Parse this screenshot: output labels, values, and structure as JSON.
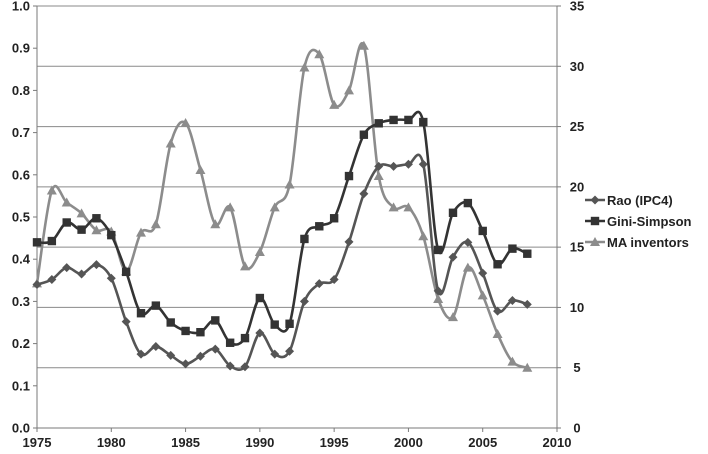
{
  "chart_data": {
    "type": "line",
    "x": [
      1975,
      1976,
      1977,
      1978,
      1979,
      1980,
      1981,
      1982,
      1983,
      1984,
      1985,
      1986,
      1987,
      1988,
      1989,
      1990,
      1991,
      1992,
      1993,
      1994,
      1995,
      1996,
      1997,
      1998,
      1999,
      2000,
      2001,
      2002,
      2003,
      2004,
      2005,
      2006,
      2007,
      2008
    ],
    "xlim": [
      1975,
      2010
    ],
    "xticks": [
      1975,
      1980,
      1985,
      1990,
      1995,
      2000,
      2005,
      2010
    ],
    "ylim_left": [
      0,
      1.0
    ],
    "yticks_left": [
      "0.0",
      "0.1",
      "0.2",
      "0.3",
      "0.4",
      "0.5",
      "0.6",
      "0.7",
      "0.8",
      "0.9",
      "1.0"
    ],
    "ylim_right": [
      0,
      35
    ],
    "yticks_right": [
      "0",
      "5",
      "10",
      "15",
      "20",
      "25",
      "30",
      "35"
    ],
    "grid": true,
    "legend_position": "right",
    "series": [
      {
        "name": "Rao (IPC4)",
        "axis": "left",
        "marker": "diamond",
        "color": "#555555",
        "values": [
          0.34,
          0.352,
          0.38,
          0.365,
          0.387,
          0.355,
          0.252,
          0.175,
          0.193,
          0.172,
          0.152,
          0.17,
          0.187,
          0.147,
          0.145,
          0.225,
          0.175,
          0.182,
          0.3,
          0.342,
          0.352,
          0.441,
          0.555,
          0.62,
          0.62,
          0.625,
          0.625,
          0.325,
          0.405,
          0.44,
          0.367,
          0.277,
          0.302,
          0.293
        ]
      },
      {
        "name": "Gini-Simpson",
        "axis": "left",
        "marker": "square",
        "color": "#333333",
        "values": [
          0.44,
          0.443,
          0.487,
          0.47,
          0.497,
          0.457,
          0.37,
          0.272,
          0.29,
          0.25,
          0.23,
          0.227,
          0.255,
          0.202,
          0.213,
          0.308,
          0.245,
          0.247,
          0.448,
          0.478,
          0.497,
          0.597,
          0.695,
          0.722,
          0.73,
          0.73,
          0.725,
          0.422,
          0.51,
          0.533,
          0.467,
          0.388,
          0.425,
          0.413
        ]
      },
      {
        "name": "MA inventors",
        "axis": "right",
        "marker": "triangle",
        "color": "#8c8c8c",
        "values": [
          12.0,
          19.7,
          18.7,
          17.8,
          16.4,
          16.3,
          13.0,
          16.2,
          16.9,
          23.6,
          25.3,
          21.4,
          16.9,
          18.3,
          13.4,
          14.6,
          18.3,
          20.2,
          29.9,
          31.0,
          26.8,
          28.0,
          31.7,
          20.9,
          18.3,
          18.3,
          15.9,
          10.7,
          9.2,
          13.3,
          11.0,
          7.8,
          5.5,
          5.0
        ]
      }
    ]
  }
}
